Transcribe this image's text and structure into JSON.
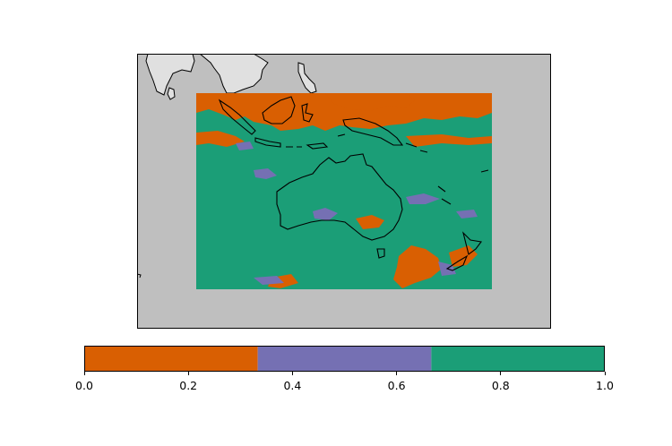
{
  "map": {
    "background_color": "#bfbfbf",
    "land_color": "#e0e0e0",
    "coastline_color": "#000000",
    "region_description_hidden": true
  },
  "colorbar": {
    "segments": [
      {
        "from": 0.0,
        "to": 0.3333,
        "color": "#d95f02"
      },
      {
        "from": 0.3333,
        "to": 0.6667,
        "color": "#7570b3"
      },
      {
        "from": 0.6667,
        "to": 1.0,
        "color": "#1b9e77"
      }
    ],
    "ticks": [
      {
        "value": 0.0,
        "label": "0.0"
      },
      {
        "value": 0.2,
        "label": "0.2"
      },
      {
        "value": 0.4,
        "label": "0.4"
      },
      {
        "value": 0.6,
        "label": "0.6"
      },
      {
        "value": 0.8,
        "label": "0.8"
      },
      {
        "value": 1.0,
        "label": "1.0"
      }
    ]
  }
}
